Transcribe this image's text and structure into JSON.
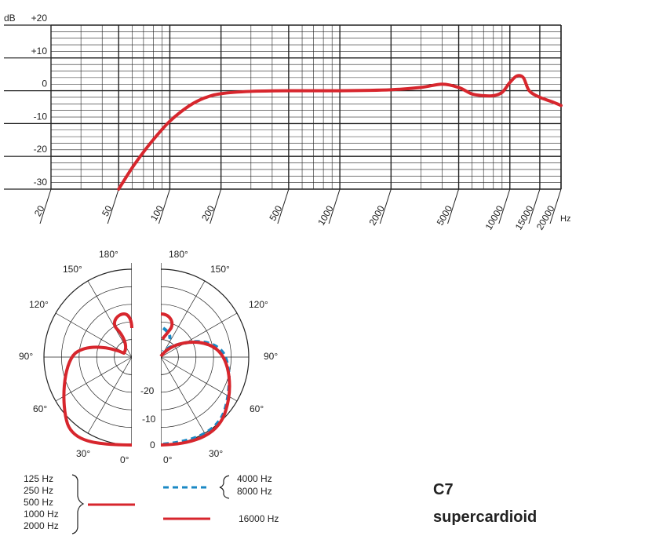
{
  "colors": {
    "red": "#d7262d",
    "blue": "#1a88c4",
    "grid": "#222222"
  },
  "chart_data": [
    {
      "type": "line",
      "title": "",
      "xlabel": "Hz",
      "ylabel": "dB",
      "x_scale": "log",
      "xlim": [
        20,
        20000
      ],
      "ylim": [
        -30,
        20
      ],
      "grid": true,
      "x_ticks": [
        "20",
        "50",
        "100",
        "200",
        "500",
        "1000",
        "2000",
        "5000",
        "10000",
        "15000",
        "20000"
      ],
      "y_ticks": [
        "+20",
        "+10",
        "0",
        "-10",
        "-20",
        "-30"
      ],
      "series": [
        {
          "color": "#d7262d",
          "x": [
            50,
            60,
            70,
            80,
            100,
            130,
            160,
            200,
            300,
            500,
            1000,
            2000,
            3000,
            4000,
            5000,
            6000,
            7000,
            8000,
            9000,
            10000,
            11000,
            12000,
            13000,
            15000,
            18000,
            20000
          ],
          "y": [
            -30,
            -23.5,
            -18.7,
            -14.9,
            -9.3,
            -4.6,
            -2.2,
            -0.9,
            -0.2,
            0,
            0,
            0.3,
            1.0,
            2.0,
            1.0,
            -1.0,
            -1.5,
            -1.5,
            -0.5,
            2.5,
            4.5,
            4.0,
            0,
            -2.0,
            -3.5,
            -4.5
          ]
        }
      ]
    },
    {
      "type": "polar",
      "title": "",
      "radial_ticks": [
        "-20",
        "-10",
        "0"
      ],
      "angle_ticks": [
        "0°",
        "30°",
        "60°",
        "90°",
        "120°",
        "150°",
        "180°"
      ],
      "rlim": [
        -25,
        0
      ],
      "legend": [
        {
          "labels": [
            "125 Hz",
            "250 Hz",
            "500 Hz",
            "1000 Hz",
            "2000 Hz"
          ],
          "style": "solid",
          "color": "#d7262d"
        },
        {
          "labels": [
            "4000 Hz",
            "8000 Hz"
          ],
          "style": "dashed",
          "color": "#1a88c4"
        },
        {
          "labels": [
            "16000 Hz"
          ],
          "style": "solid",
          "color": "#d7262d"
        }
      ]
    }
  ],
  "legend": {
    "low": [
      "125 Hz",
      "250 Hz",
      "500 Hz",
      "1000 Hz",
      "2000 Hz"
    ],
    "mid": [
      "4000 Hz",
      "8000 Hz"
    ],
    "high": "16000 Hz"
  },
  "model": {
    "name": "C7",
    "type": "supercardioid"
  }
}
